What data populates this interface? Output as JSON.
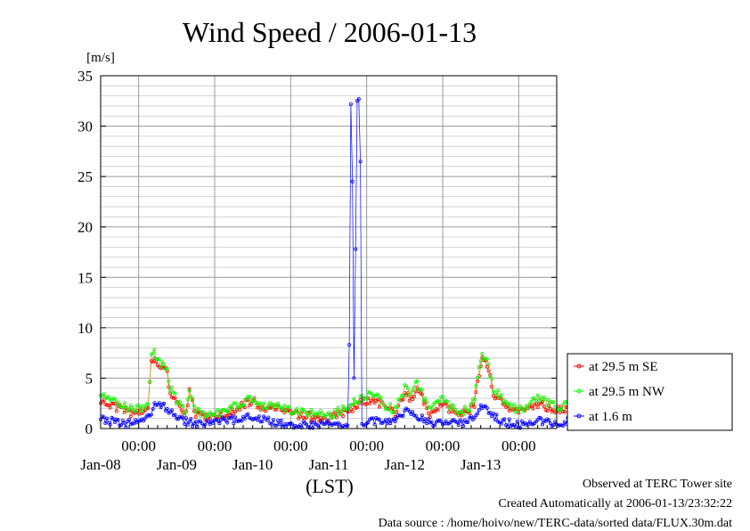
{
  "chart_data": {
    "type": "line",
    "title": "Wind Speed / 2006-01-13",
    "ylabel": "[m/s]",
    "xlabel": "(LST)",
    "ylim": [
      0,
      35
    ],
    "yticks": [
      0,
      5,
      10,
      15,
      20,
      25,
      30,
      35
    ],
    "grid": true,
    "legend_position": "right",
    "x_time_ticks": [
      "00:00",
      "00:00",
      "00:00",
      "00:00",
      "00:00",
      "00:00"
    ],
    "x_date_labels": [
      "Jan-08",
      "Jan-09",
      "Jan-10",
      "Jan-11",
      "Jan-12",
      "Jan-13"
    ],
    "sample_interval": "30 min",
    "x_start": "2006-01-07 12:00",
    "series": [
      {
        "name": "at 29.5 m SE",
        "color": "#ff0000",
        "keypoints": [
          [
            "2006-01-07 12:00",
            2.5
          ],
          [
            "2006-01-07 18:00",
            2.0
          ],
          [
            "2006-01-07 22:00",
            1.5
          ],
          [
            "2006-01-08 03:00",
            2.0
          ],
          [
            "2006-01-08 04:00",
            6.5
          ],
          [
            "2006-01-08 05:00",
            7.2
          ],
          [
            "2006-01-08 07:00",
            6.0
          ],
          [
            "2006-01-08 09:00",
            5.5
          ],
          [
            "2006-01-08 10:00",
            3.5
          ],
          [
            "2006-01-08 12:00",
            2.5
          ],
          [
            "2006-01-08 15:00",
            1.5
          ],
          [
            "2006-01-08 16:00",
            3.8
          ],
          [
            "2006-01-08 18:00",
            1.5
          ],
          [
            "2006-01-08 22:00",
            1.0
          ],
          [
            "2006-01-09 04:00",
            1.5
          ],
          [
            "2006-01-09 08:00",
            2.2
          ],
          [
            "2006-01-09 12:00",
            2.8
          ],
          [
            "2006-01-09 16:00",
            1.8
          ],
          [
            "2006-01-09 20:00",
            2.2
          ],
          [
            "2006-01-10 00:00",
            1.5
          ],
          [
            "2006-01-10 06:00",
            1.2
          ],
          [
            "2006-01-10 12:00",
            1.0
          ],
          [
            "2006-01-10 16:00",
            1.5
          ],
          [
            "2006-01-10 18:00",
            1.8
          ],
          [
            "2006-01-10 22:00",
            2.5
          ],
          [
            "2006-01-11 02:00",
            3.0
          ],
          [
            "2006-01-11 06:00",
            2.0
          ],
          [
            "2006-01-11 09:00",
            1.5
          ],
          [
            "2006-01-11 12:00",
            3.5
          ],
          [
            "2006-01-11 14:00",
            3.0
          ],
          [
            "2006-01-11 16:00",
            4.0
          ],
          [
            "2006-01-11 20:00",
            1.5
          ],
          [
            "2006-01-12 00:00",
            2.5
          ],
          [
            "2006-01-12 04:00",
            1.5
          ],
          [
            "2006-01-12 08:00",
            1.5
          ],
          [
            "2006-01-12 10:00",
            2.5
          ],
          [
            "2006-01-12 12:00",
            6.5
          ],
          [
            "2006-01-12 13:00",
            7.0
          ],
          [
            "2006-01-12 14:00",
            6.5
          ],
          [
            "2006-01-12 16:00",
            3.5
          ],
          [
            "2006-01-12 20:00",
            2.0
          ],
          [
            "2006-01-13 00:00",
            1.5
          ],
          [
            "2006-01-13 06:00",
            2.5
          ],
          [
            "2006-01-13 12:00",
            1.8
          ],
          [
            "2006-01-13 18:00",
            2.0
          ],
          [
            "2006-01-13 23:30",
            2.2
          ]
        ]
      },
      {
        "name": "at 29.5 m NW",
        "color": "#00ff00",
        "keypoints": [
          [
            "2006-01-07 12:00",
            3.2
          ],
          [
            "2006-01-07 18:00",
            2.5
          ],
          [
            "2006-01-07 22:00",
            1.8
          ],
          [
            "2006-01-08 03:00",
            2.3
          ],
          [
            "2006-01-08 04:00",
            7.0
          ],
          [
            "2006-01-08 05:00",
            7.5
          ],
          [
            "2006-01-08 07:00",
            6.5
          ],
          [
            "2006-01-08 09:00",
            6.0
          ],
          [
            "2006-01-08 10:00",
            4.0
          ],
          [
            "2006-01-08 12:00",
            2.8
          ],
          [
            "2006-01-08 15:00",
            1.7
          ],
          [
            "2006-01-08 16:00",
            3.8
          ],
          [
            "2006-01-08 18:00",
            1.8
          ],
          [
            "2006-01-08 22:00",
            1.2
          ],
          [
            "2006-01-09 04:00",
            1.8
          ],
          [
            "2006-01-09 08:00",
            2.5
          ],
          [
            "2006-01-09 12:00",
            3.0
          ],
          [
            "2006-01-09 16:00",
            2.0
          ],
          [
            "2006-01-09 20:00",
            2.5
          ],
          [
            "2006-01-10 00:00",
            1.8
          ],
          [
            "2006-01-10 06:00",
            1.5
          ],
          [
            "2006-01-10 12:00",
            1.3
          ],
          [
            "2006-01-10 16:00",
            1.8
          ],
          [
            "2006-01-10 18:00",
            2.2
          ],
          [
            "2006-01-10 22:00",
            3.0
          ],
          [
            "2006-01-11 02:00",
            3.5
          ],
          [
            "2006-01-11 06:00",
            2.3
          ],
          [
            "2006-01-11 09:00",
            1.8
          ],
          [
            "2006-01-11 12:00",
            4.0
          ],
          [
            "2006-01-11 14:00",
            3.5
          ],
          [
            "2006-01-11 16:00",
            4.5
          ],
          [
            "2006-01-11 20:00",
            1.8
          ],
          [
            "2006-01-12 00:00",
            3.0
          ],
          [
            "2006-01-12 04:00",
            1.8
          ],
          [
            "2006-01-12 08:00",
            1.8
          ],
          [
            "2006-01-12 10:00",
            2.8
          ],
          [
            "2006-01-12 12:00",
            7.0
          ],
          [
            "2006-01-12 13:00",
            7.3
          ],
          [
            "2006-01-12 14:00",
            7.0
          ],
          [
            "2006-01-12 16:00",
            4.0
          ],
          [
            "2006-01-12 20:00",
            2.5
          ],
          [
            "2006-01-13 00:00",
            1.8
          ],
          [
            "2006-01-13 06:00",
            3.0
          ],
          [
            "2006-01-13 12:00",
            2.2
          ],
          [
            "2006-01-13 18:00",
            2.3
          ],
          [
            "2006-01-13 23:30",
            2.5
          ]
        ]
      },
      {
        "name": "at 1.6 m",
        "color": "#0000ff",
        "keypoints": [
          [
            "2006-01-07 12:00",
            1.0
          ],
          [
            "2006-01-07 18:00",
            0.5
          ],
          [
            "2006-01-07 22:00",
            0.5
          ],
          [
            "2006-01-08 03:00",
            1.0
          ],
          [
            "2006-01-08 05:00",
            2.5
          ],
          [
            "2006-01-08 07:00",
            2.3
          ],
          [
            "2006-01-08 10:00",
            1.8
          ],
          [
            "2006-01-08 14:00",
            0.7
          ],
          [
            "2006-01-08 20:00",
            0.5
          ],
          [
            "2006-01-09 04:00",
            0.8
          ],
          [
            "2006-01-09 12:00",
            1.2
          ],
          [
            "2006-01-09 20:00",
            0.5
          ],
          [
            "2006-01-10 06:00",
            0.3
          ],
          [
            "2006-01-10 12:00",
            0.5
          ],
          [
            "2006-01-10 18:00",
            0.3
          ],
          [
            "2006-01-10 18:30",
            8.3
          ],
          [
            "2006-01-10 19:00",
            32.2
          ],
          [
            "2006-01-10 19:30",
            24.5
          ],
          [
            "2006-01-10 20:00",
            5.0
          ],
          [
            "2006-01-10 20:30",
            17.8
          ],
          [
            "2006-01-10 21:00",
            32.5
          ],
          [
            "2006-01-10 21:30",
            32.7
          ],
          [
            "2006-01-10 22:00",
            26.5
          ],
          [
            "2006-01-10 22:30",
            0.5
          ],
          [
            "2006-01-11 02:00",
            0.8
          ],
          [
            "2006-01-11 06:00",
            0.5
          ],
          [
            "2006-01-11 10:00",
            1.0
          ],
          [
            "2006-01-11 12:00",
            1.8
          ],
          [
            "2006-01-11 16:00",
            1.2
          ],
          [
            "2006-01-11 20:00",
            0.5
          ],
          [
            "2006-01-12 04:00",
            0.7
          ],
          [
            "2006-01-12 08:00",
            0.6
          ],
          [
            "2006-01-12 12:00",
            2.3
          ],
          [
            "2006-01-12 14:00",
            2.0
          ],
          [
            "2006-01-12 18:00",
            0.8
          ],
          [
            "2006-01-13 00:00",
            0.3
          ],
          [
            "2006-01-13 06:00",
            0.8
          ],
          [
            "2006-01-13 12:00",
            0.5
          ],
          [
            "2006-01-13 18:00",
            0.8
          ],
          [
            "2006-01-13 23:30",
            0.5
          ]
        ]
      }
    ]
  },
  "footer": {
    "line1": "Observed at TERC Tower site",
    "line2": "Created Automatically at 2006-01-13/23:32:22",
    "line3": "Data source : /home/hoivo/new/TERC-data/sorted  data/FLUX.30m.dat"
  }
}
